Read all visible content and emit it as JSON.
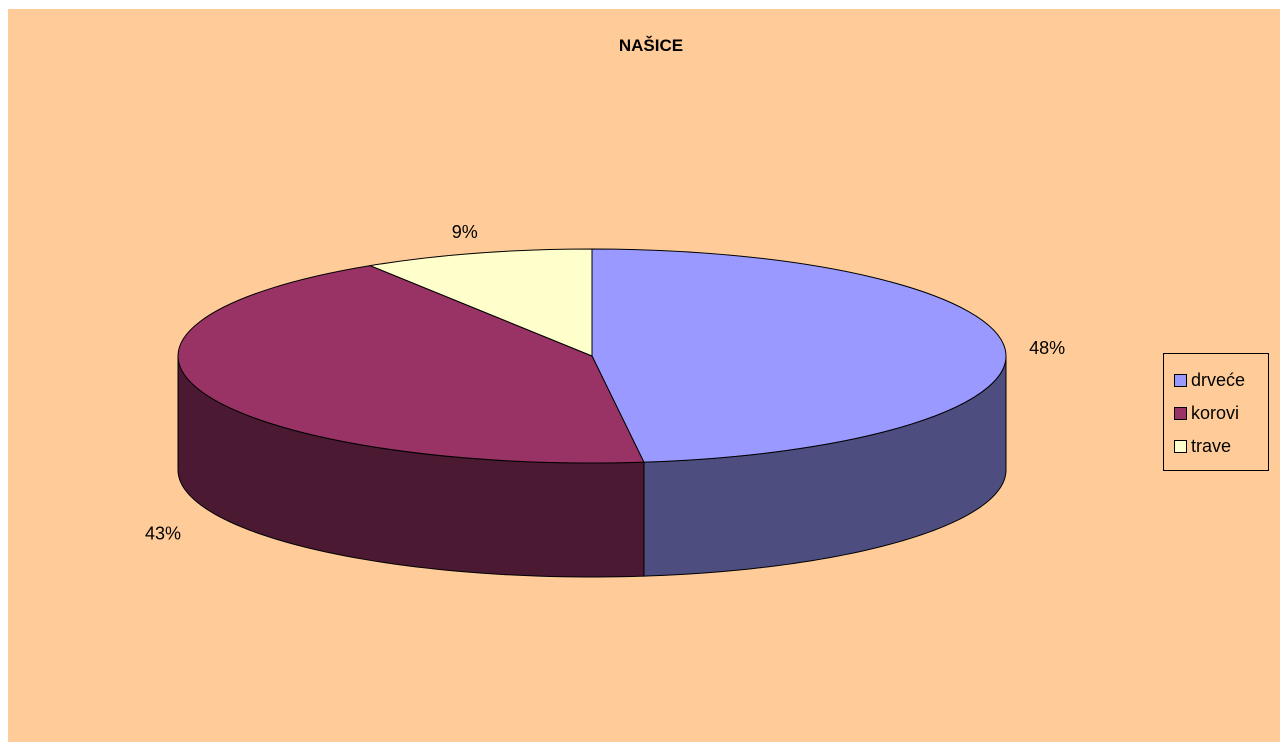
{
  "chart_data": {
    "type": "pie",
    "title": "NAŠICE",
    "style": "3d",
    "categories": [
      "drveće",
      "korovi",
      "trave"
    ],
    "values": [
      48,
      43,
      9
    ],
    "data_labels": [
      "48%",
      "43%",
      "9%"
    ],
    "colors": [
      "#9999ff",
      "#993366",
      "#ffffcc"
    ],
    "side_colors": [
      "#4d4d80",
      "#4c1933",
      "#ffffcc"
    ],
    "background_color": "#ffcc99",
    "legend_position": "right"
  }
}
